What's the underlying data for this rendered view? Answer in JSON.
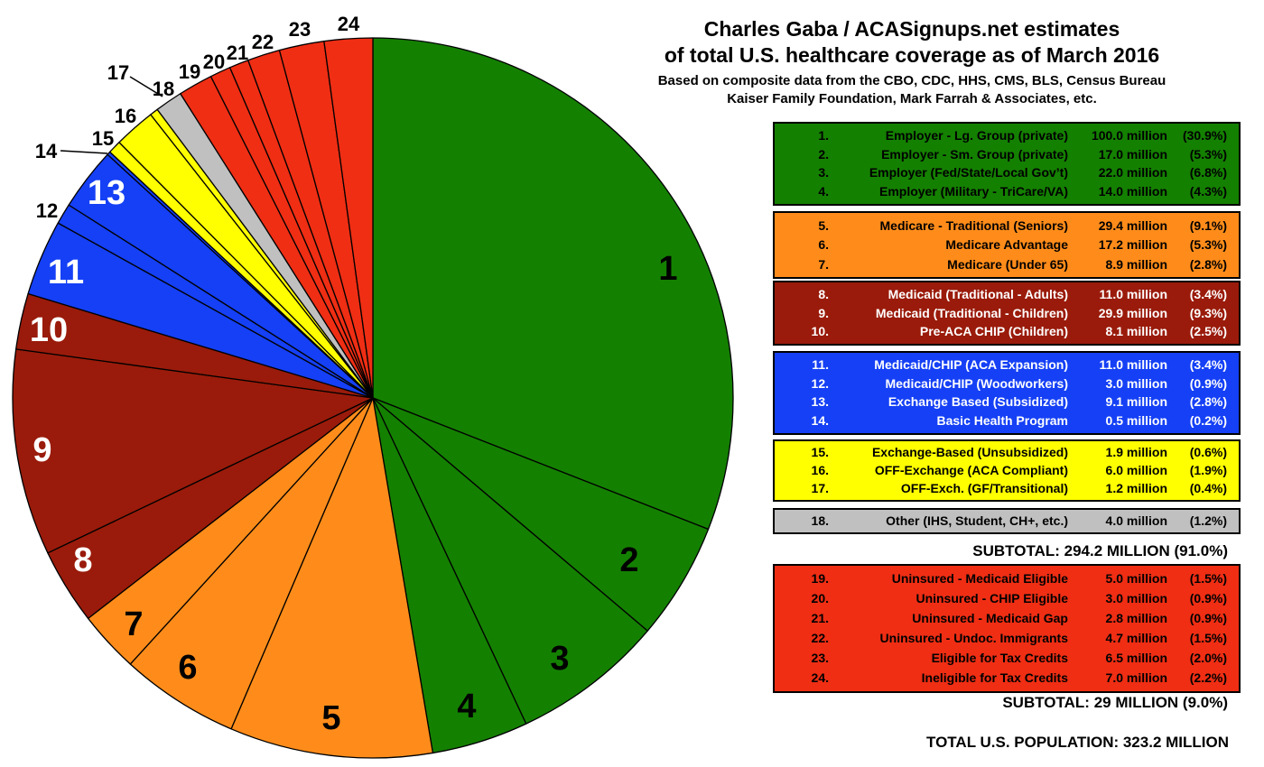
{
  "header": {
    "title_line1": "Charles Gaba / ACASignups.net estimates",
    "title_line2": "of total U.S. healthcare coverage as of March 2016",
    "subtitle_line1": "Based on composite data from the CBO, CDC, HHS, CMS, BLS, Census Bureau",
    "subtitle_line2": "Kaiser Family Foundation, Mark Farrah & Associates, etc."
  },
  "totals": {
    "insured_subtotal": "SUBTOTAL: 294.2 MILLION (91.0%)",
    "uninsured_subtotal": "SUBTOTAL: 29 MILLION (9.0%)",
    "population_total": "TOTAL U.S. POPULATION: 323.2 MILLION"
  },
  "palette": {
    "green": {
      "bg": "#148000",
      "fg": "#000000"
    },
    "orange": {
      "bg": "#FF8C1A",
      "fg": "#000000"
    },
    "maroon": {
      "bg": "#9A1B0B",
      "fg": "#FFFFFF"
    },
    "blue": {
      "bg": "#1540F5",
      "fg": "#FFFFFF"
    },
    "yellow": {
      "bg": "#FFFF00",
      "fg": "#000000"
    },
    "gray": {
      "bg": "#C0C0C0",
      "fg": "#000000"
    },
    "red": {
      "bg": "#EF2E14",
      "fg": "#000000"
    }
  },
  "chart_data": {
    "type": "pie",
    "title": "Charles Gaba / ACASignups.net estimates of total U.S. healthcare coverage as of March 2016",
    "subtitle": "Based on composite data from the CBO, CDC, HHS, CMS, BLS, Census Bureau, Kaiser Family Foundation, Mark Farrah & Associates, etc.",
    "total_millions": 323.2,
    "start_angle_deg": 0,
    "direction": "clockwise",
    "legend_position": "right",
    "segments": [
      {
        "n": 1,
        "num_label": "1.",
        "label": "Employer - Lg. Group (private)",
        "millions": 100.0,
        "value_label": "100.0 million",
        "percent": 30.9,
        "percent_label": "(30.9%)",
        "group": "green"
      },
      {
        "n": 2,
        "num_label": "2.",
        "label": "Employer - Sm. Group (private)",
        "millions": 17.0,
        "value_label": "17.0 million",
        "percent": 5.3,
        "percent_label": "(5.3%)",
        "group": "green"
      },
      {
        "n": 3,
        "num_label": "3.",
        "label": "Employer (Fed/State/Local Gov’t)",
        "millions": 22.0,
        "value_label": "22.0 million",
        "percent": 6.8,
        "percent_label": "(6.8%)",
        "group": "green"
      },
      {
        "n": 4,
        "num_label": "4.",
        "label": "Employer (Military - TriCare/VA)",
        "millions": 14.0,
        "value_label": "14.0 million",
        "percent": 4.3,
        "percent_label": "(4.3%)",
        "group": "green"
      },
      {
        "n": 5,
        "num_label": "5.",
        "label": "Medicare - Traditional (Seniors)",
        "millions": 29.4,
        "value_label": "29.4 million",
        "percent": 9.1,
        "percent_label": "(9.1%)",
        "group": "orange"
      },
      {
        "n": 6,
        "num_label": "6.",
        "label": "Medicare Advantage",
        "millions": 17.2,
        "value_label": "17.2 million",
        "percent": 5.3,
        "percent_label": "(5.3%)",
        "group": "orange"
      },
      {
        "n": 7,
        "num_label": "7.",
        "label": "Medicare (Under 65)",
        "millions": 8.9,
        "value_label": "8.9 million",
        "percent": 2.8,
        "percent_label": "(2.8%)",
        "group": "orange"
      },
      {
        "n": 8,
        "num_label": "8.",
        "label": "Medicaid (Traditional - Adults)",
        "millions": 11.0,
        "value_label": "11.0 million",
        "percent": 3.4,
        "percent_label": "(3.4%)",
        "group": "maroon"
      },
      {
        "n": 9,
        "num_label": "9.",
        "label": "Medicaid (Traditional - Children)",
        "millions": 29.9,
        "value_label": "29.9 million",
        "percent": 9.3,
        "percent_label": "(9.3%)",
        "group": "maroon"
      },
      {
        "n": 10,
        "num_label": "10.",
        "label": "Pre-ACA CHIP (Children)",
        "millions": 8.1,
        "value_label": "8.1 million",
        "percent": 2.5,
        "percent_label": "(2.5%)",
        "group": "maroon"
      },
      {
        "n": 11,
        "num_label": "11.",
        "label": "Medicaid/CHIP (ACA Expansion)",
        "millions": 11.0,
        "value_label": "11.0 million",
        "percent": 3.4,
        "percent_label": "(3.4%)",
        "group": "blue"
      },
      {
        "n": 12,
        "num_label": "12.",
        "label": "Medicaid/CHIP (Woodworkers)",
        "millions": 3.0,
        "value_label": "3.0 million",
        "percent": 0.9,
        "percent_label": "(0.9%)",
        "group": "blue"
      },
      {
        "n": 13,
        "num_label": "13.",
        "label": "Exchange Based (Subsidized)",
        "millions": 9.1,
        "value_label": "9.1 million",
        "percent": 2.8,
        "percent_label": "(2.8%)",
        "group": "blue"
      },
      {
        "n": 14,
        "num_label": "14.",
        "label": "Basic Health Program",
        "millions": 0.5,
        "value_label": "0.5 million",
        "percent": 0.2,
        "percent_label": "(0.2%)",
        "group": "blue"
      },
      {
        "n": 15,
        "num_label": "15.",
        "label": "Exchange-Based (Unsubsidized)",
        "millions": 1.9,
        "value_label": "1.9 million",
        "percent": 0.6,
        "percent_label": "(0.6%)",
        "group": "yellow"
      },
      {
        "n": 16,
        "num_label": "16.",
        "label": "OFF-Exchange (ACA Compliant)",
        "millions": 6.0,
        "value_label": "6.0 million",
        "percent": 1.9,
        "percent_label": "(1.9%)",
        "group": "yellow"
      },
      {
        "n": 17,
        "num_label": "17.",
        "label": "OFF-Exch. (GF/Transitional)",
        "millions": 1.2,
        "value_label": "1.2 million",
        "percent": 0.4,
        "percent_label": "(0.4%)",
        "group": "yellow"
      },
      {
        "n": 18,
        "num_label": "18.",
        "label": "Other (IHS, Student, CH+, etc.)",
        "millions": 4.0,
        "value_label": "4.0 million",
        "percent": 1.2,
        "percent_label": "(1.2%)",
        "group": "gray"
      },
      {
        "n": 19,
        "num_label": "19.",
        "label": "Uninsured - Medicaid Eligible",
        "millions": 5.0,
        "value_label": "5.0 million",
        "percent": 1.5,
        "percent_label": "(1.5%)",
        "group": "red"
      },
      {
        "n": 20,
        "num_label": "20.",
        "label": "Uninsured - CHIP Eligible",
        "millions": 3.0,
        "value_label": "3.0 million",
        "percent": 0.9,
        "percent_label": "(0.9%)",
        "group": "red"
      },
      {
        "n": 21,
        "num_label": "21.",
        "label": "Uninsured - Medicaid Gap",
        "millions": 2.8,
        "value_label": "2.8 million",
        "percent": 0.9,
        "percent_label": "(0.9%)",
        "group": "red"
      },
      {
        "n": 22,
        "num_label": "22.",
        "label": "Uninsured - Undoc. Immigrants",
        "millions": 4.7,
        "value_label": "4.7 million",
        "percent": 1.5,
        "percent_label": "(1.5%)",
        "group": "red"
      },
      {
        "n": 23,
        "num_label": "23.",
        "label": "Eligible for Tax Credits",
        "millions": 6.5,
        "value_label": "6.5 million",
        "percent": 2.0,
        "percent_label": "(2.0%)",
        "group": "red"
      },
      {
        "n": 24,
        "num_label": "24.",
        "label": "Ineligible for Tax Credits",
        "millions": 7.0,
        "value_label": "7.0 million",
        "percent": 2.2,
        "percent_label": "(2.2%)",
        "group": "red"
      }
    ]
  }
}
